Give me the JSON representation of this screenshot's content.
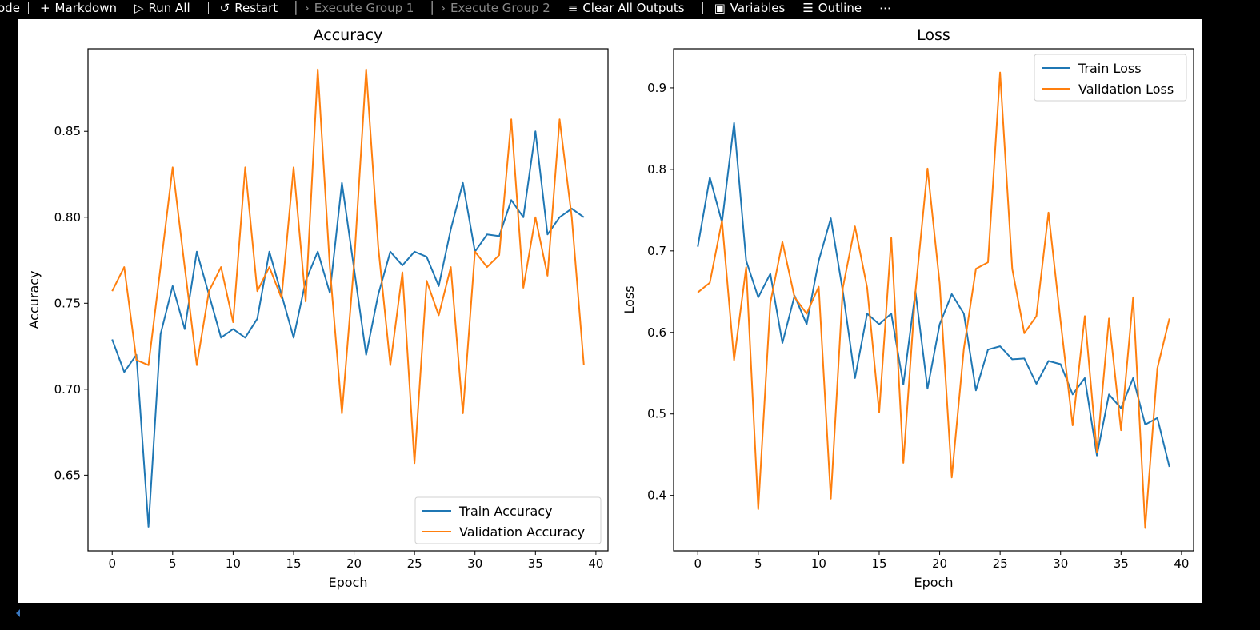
{
  "toolbar": {
    "items": [
      {
        "label": "ode",
        "icon": "",
        "enabled": true
      },
      {
        "label": "Markdown",
        "icon": "plus-icon",
        "enabled": true
      },
      {
        "label": "Run All",
        "icon": "run-all-icon",
        "enabled": true
      },
      {
        "label": "Restart",
        "icon": "restart-icon",
        "enabled": true
      },
      {
        "label": "Execute Group 1",
        "icon": "execute-group-icon",
        "enabled": false
      },
      {
        "label": "Execute Group 2",
        "icon": "execute-group-icon",
        "enabled": false
      },
      {
        "label": "Clear All Outputs",
        "icon": "clear-outputs-icon",
        "enabled": true
      },
      {
        "label": "Variables",
        "icon": "variables-icon",
        "enabled": true
      },
      {
        "label": "Outline",
        "icon": "outline-icon",
        "enabled": true
      },
      {
        "label": "⋯",
        "icon": "more-icon",
        "enabled": true
      }
    ]
  },
  "chart_data": [
    {
      "type": "line",
      "title": "Accuracy",
      "xlabel": "Epoch",
      "ylabel": "Accuracy",
      "xlim": [
        -2,
        41
      ],
      "ylim": [
        0.606,
        0.898
      ],
      "xticks": [
        0,
        5,
        10,
        15,
        20,
        25,
        30,
        35,
        40
      ],
      "yticks": [
        0.65,
        0.7,
        0.75,
        0.8,
        0.85
      ],
      "ytick_labels": [
        "0.65",
        "0.70",
        "0.75",
        "0.80",
        "0.85"
      ],
      "legend": "lower right",
      "series": [
        {
          "name": "Train Accuracy",
          "color": "#1f77b4",
          "values": [
            0.729,
            0.71,
            0.72,
            0.62,
            0.732,
            0.76,
            0.735,
            0.78,
            0.755,
            0.73,
            0.735,
            0.73,
            0.741,
            0.78,
            0.755,
            0.73,
            0.763,
            0.78,
            0.756,
            0.82,
            0.77,
            0.72,
            0.755,
            0.78,
            0.772,
            0.78,
            0.777,
            0.76,
            0.793,
            0.82,
            0.78,
            0.79,
            0.789,
            0.81,
            0.8,
            0.85,
            0.79,
            0.8,
            0.805,
            0.8
          ]
        },
        {
          "name": "Validation Accuracy",
          "color": "#ff7f0e",
          "values": [
            0.757,
            0.771,
            0.717,
            0.714,
            0.771,
            0.829,
            0.771,
            0.714,
            0.757,
            0.771,
            0.739,
            0.829,
            0.757,
            0.771,
            0.753,
            0.829,
            0.751,
            0.886,
            0.771,
            0.686,
            0.773,
            0.886,
            0.783,
            0.714,
            0.768,
            0.657,
            0.763,
            0.743,
            0.771,
            0.686,
            0.78,
            0.771,
            0.778,
            0.857,
            0.759,
            0.8,
            0.766,
            0.857,
            0.8,
            0.714
          ]
        }
      ]
    },
    {
      "type": "line",
      "title": "Loss",
      "xlabel": "Epoch",
      "ylabel": "Loss",
      "xlim": [
        -2,
        41
      ],
      "ylim": [
        0.332,
        0.948
      ],
      "xticks": [
        0,
        5,
        10,
        15,
        20,
        25,
        30,
        35,
        40
      ],
      "yticks": [
        0.4,
        0.5,
        0.6,
        0.7,
        0.8,
        0.9
      ],
      "ytick_labels": [
        "0.4",
        "0.5",
        "0.6",
        "0.7",
        "0.8",
        "0.9"
      ],
      "legend": "upper right",
      "series": [
        {
          "name": "Train Loss",
          "color": "#1f77b4",
          "values": [
            0.705,
            0.79,
            0.735,
            0.857,
            0.688,
            0.643,
            0.672,
            0.587,
            0.645,
            0.61,
            0.688,
            0.74,
            0.65,
            0.544,
            0.623,
            0.61,
            0.623,
            0.536,
            0.65,
            0.531,
            0.61,
            0.647,
            0.623,
            0.529,
            0.579,
            0.583,
            0.567,
            0.568,
            0.537,
            0.565,
            0.561,
            0.524,
            0.544,
            0.449,
            0.524,
            0.507,
            0.544,
            0.487,
            0.495,
            0.435
          ]
        },
        {
          "name": "Validation Loss",
          "color": "#ff7f0e",
          "values": [
            0.649,
            0.661,
            0.737,
            0.566,
            0.68,
            0.383,
            0.636,
            0.711,
            0.643,
            0.623,
            0.656,
            0.396,
            0.655,
            0.73,
            0.655,
            0.502,
            0.716,
            0.44,
            0.65,
            0.801,
            0.66,
            0.422,
            0.58,
            0.678,
            0.686,
            0.919,
            0.678,
            0.599,
            0.62,
            0.747,
            0.614,
            0.486,
            0.62,
            0.453,
            0.617,
            0.48,
            0.643,
            0.36,
            0.556,
            0.617
          ]
        }
      ]
    }
  ]
}
